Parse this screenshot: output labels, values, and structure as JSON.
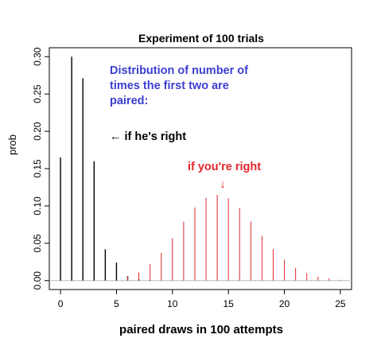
{
  "chart_data": {
    "type": "bar",
    "title": "Experiment of 100 trials",
    "xlabel": "paired draws in 100 attempts",
    "ylabel": "prob",
    "xlim": [
      -1,
      26
    ],
    "ylim": [
      -0.012,
      0.312
    ],
    "xticks": [
      0,
      5,
      10,
      15,
      20,
      25
    ],
    "yticks": [
      "0.00",
      "0.05",
      "0.10",
      "0.15",
      "0.20",
      "0.25",
      "0.30"
    ],
    "baseline": 0,
    "series": [
      {
        "color": "#000000",
        "points": [
          {
            "x": 0,
            "y": 0.165
          },
          {
            "x": 1,
            "y": 0.3
          },
          {
            "x": 2,
            "y": 0.271
          },
          {
            "x": 3,
            "y": 0.16
          },
          {
            "x": 4,
            "y": 0.042
          },
          {
            "x": 5,
            "y": 0.024
          },
          {
            "x": 6,
            "y": 0.006
          },
          {
            "x": 7,
            "y": 0.002
          },
          {
            "x": 8,
            "y": 0.001
          }
        ]
      },
      {
        "color": "#e3262c",
        "points": [
          {
            "x": 6,
            "y": 0.005
          },
          {
            "x": 7,
            "y": 0.011
          },
          {
            "x": 8,
            "y": 0.022
          },
          {
            "x": 9,
            "y": 0.037
          },
          {
            "x": 10,
            "y": 0.057
          },
          {
            "x": 11,
            "y": 0.079
          },
          {
            "x": 12,
            "y": 0.098
          },
          {
            "x": 13,
            "y": 0.111
          },
          {
            "x": 14,
            "y": 0.115
          },
          {
            "x": 15,
            "y": 0.11
          },
          {
            "x": 16,
            "y": 0.097
          },
          {
            "x": 17,
            "y": 0.079
          },
          {
            "x": 18,
            "y": 0.06
          },
          {
            "x": 19,
            "y": 0.042
          },
          {
            "x": 20,
            "y": 0.028
          },
          {
            "x": 21,
            "y": 0.017
          },
          {
            "x": 22,
            "y": 0.01
          },
          {
            "x": 23,
            "y": 0.005
          },
          {
            "x": 24,
            "y": 0.003
          },
          {
            "x": 25,
            "y": 0.001
          }
        ]
      }
    ],
    "annotations": {
      "blue_line1": "Distribution of number of",
      "blue_line2": "times the first two are",
      "blue_line3": "paired:",
      "black_note": "← if he's right",
      "red_note": "if you're right",
      "red_arrow": "↓"
    },
    "colors": {
      "blue": "#3b3fcf",
      "red": "#e3262c",
      "black": "#000000"
    }
  }
}
